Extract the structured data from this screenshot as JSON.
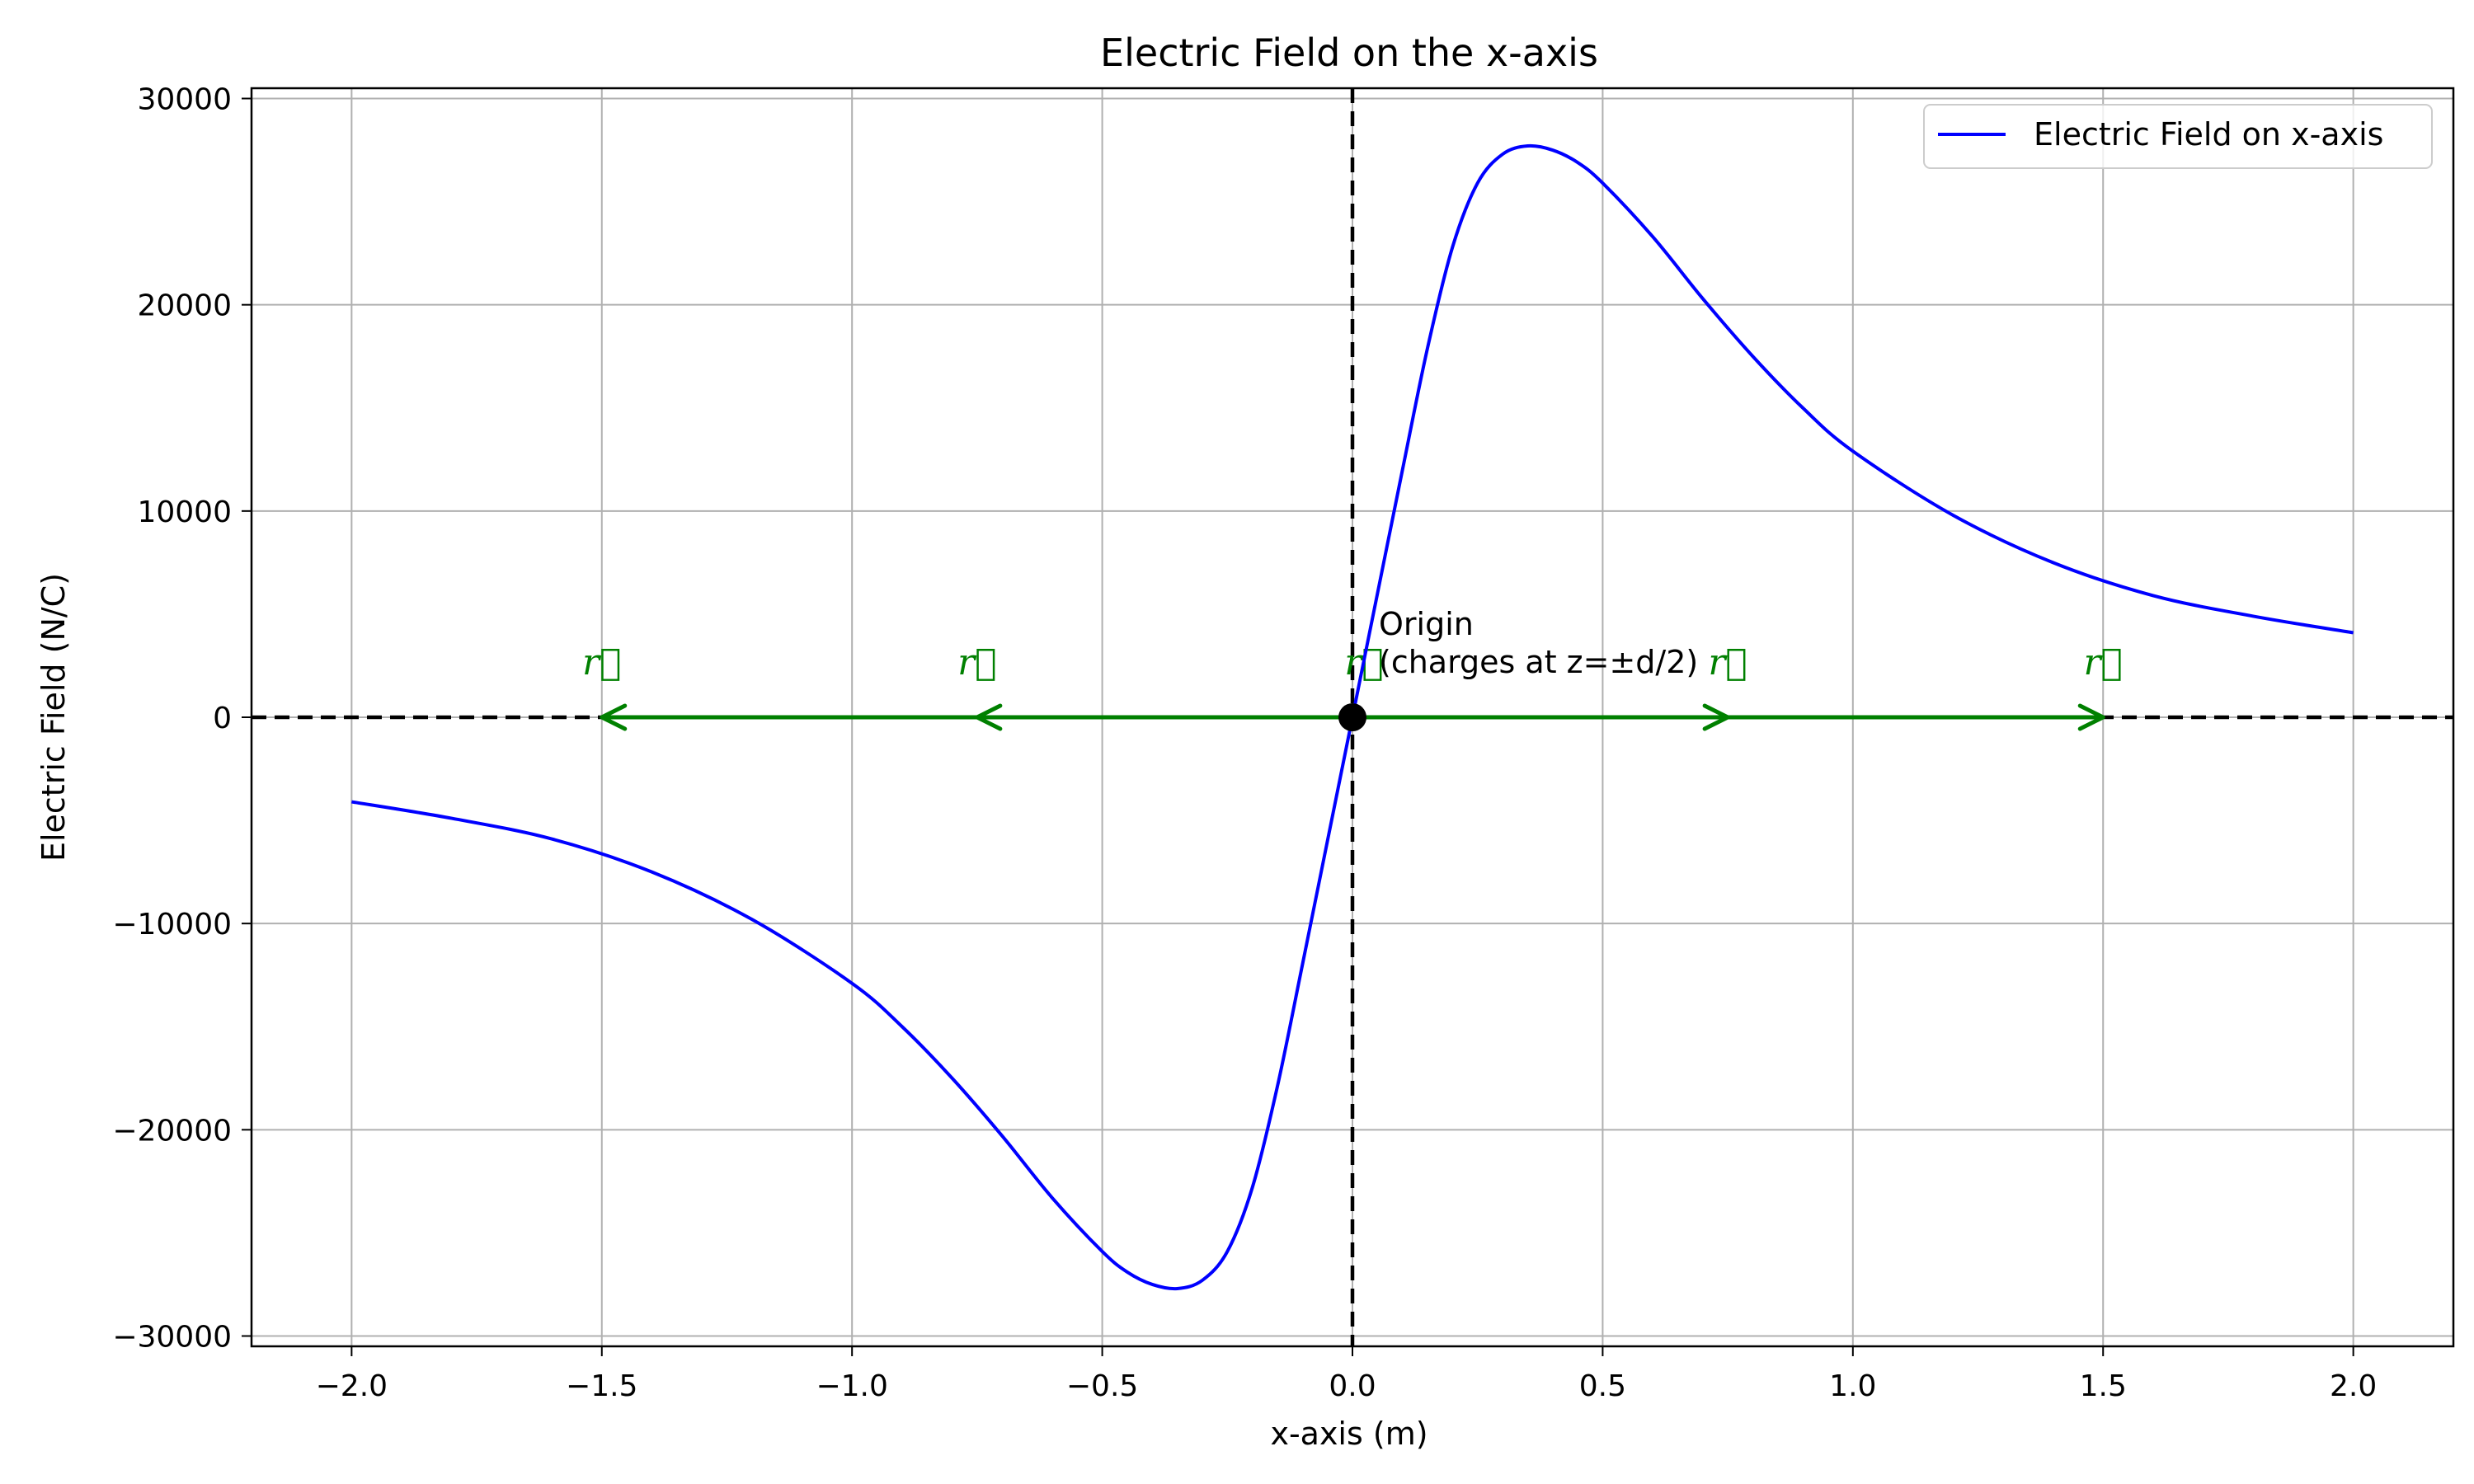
{
  "chart_data": {
    "type": "line",
    "title": "Electric Field on the x-axis",
    "xlabel": "x-axis (m)",
    "ylabel": "Electric Field (N/C)",
    "xlim": [
      -2.2,
      2.2
    ],
    "ylim": [
      -30500,
      30500
    ],
    "xticks": [
      -2.0,
      -1.5,
      -1.0,
      -0.5,
      0.0,
      0.5,
      1.0,
      1.5,
      2.0
    ],
    "xtick_labels": [
      "−2.0",
      "−1.5",
      "−1.0",
      "−0.5",
      "0.0",
      "0.5",
      "1.0",
      "1.5",
      "2.0"
    ],
    "yticks": [
      -30000,
      -20000,
      -10000,
      0,
      10000,
      20000,
      30000
    ],
    "ytick_labels": [
      "−30000",
      "−20000",
      "−10000",
      "0",
      "10000",
      "20000",
      "30000"
    ],
    "grid": true,
    "legend_position": "top-right",
    "series": [
      {
        "name": "Electric Field on x-axis",
        "color": "#0000ff",
        "x": [
          -2.0,
          -1.8,
          -1.6,
          -1.4,
          -1.2,
          -1.0,
          -0.9,
          -0.8,
          -0.7,
          -0.6,
          -0.5,
          -0.45,
          -0.4,
          -0.35,
          -0.3,
          -0.25,
          -0.2,
          -0.15,
          -0.1,
          -0.05,
          0.0,
          0.05,
          0.1,
          0.15,
          0.2,
          0.25,
          0.3,
          0.35,
          0.4,
          0.45,
          0.5,
          0.6,
          0.7,
          0.8,
          0.9,
          1.0,
          1.2,
          1.4,
          1.6,
          1.8,
          2.0
        ],
        "y": [
          -4100,
          -4900,
          -5900,
          -7500,
          -9800,
          -12900,
          -15000,
          -17500,
          -20300,
          -23300,
          -25900,
          -26900,
          -27500,
          -27700,
          -27300,
          -25900,
          -22800,
          -17900,
          -12000,
          -6000,
          0,
          6000,
          12000,
          17900,
          22800,
          25900,
          27300,
          27700,
          27500,
          26900,
          25900,
          23300,
          20300,
          17500,
          15000,
          12900,
          9800,
          7500,
          5900,
          4900,
          4100
        ]
      }
    ],
    "reference_lines": {
      "color": "#000000",
      "style": "dashed",
      "horizontal_y": 0,
      "vertical_x": 0
    },
    "origin_marker": {
      "x": 0,
      "y": 0,
      "color": "#000000",
      "label_line1": "Origin",
      "label_line2": "(charges at z=±d/2)"
    },
    "vector_arrows": {
      "color": "#008000",
      "label": "r⃗",
      "arrows": [
        {
          "x_from": 0,
          "x_to": -1.5
        },
        {
          "x_from": 0,
          "x_to": -0.75
        },
        {
          "x_from": 0,
          "x_to": 0.75
        },
        {
          "x_from": 0,
          "x_to": 1.5
        }
      ]
    }
  }
}
